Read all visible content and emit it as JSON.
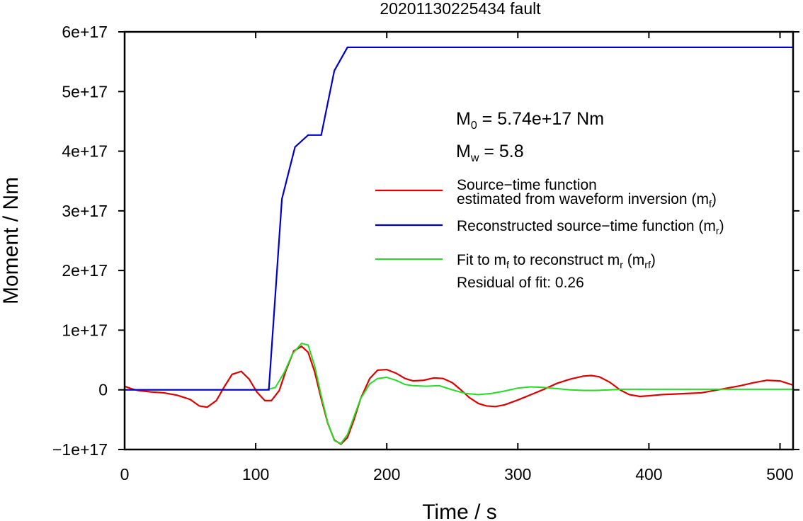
{
  "chart_data": {
    "type": "line",
    "title": "20201130225434 fault",
    "xlabel": "Time / s",
    "ylabel": "Moment / Nm",
    "xlim": [
      0,
      510
    ],
    "ylim": [
      -100000000000000000,
      600000000000000000
    ],
    "xticks": [
      0,
      100,
      200,
      300,
      400,
      500
    ],
    "xtick_labels": [
      "0",
      "100",
      "200",
      "300",
      "400",
      "500"
    ],
    "yticks": [
      -100000000000000000,
      0,
      100000000000000000,
      200000000000000000,
      300000000000000000,
      400000000000000000,
      500000000000000000,
      600000000000000000
    ],
    "ytick_labels": [
      "−1e+17",
      "0",
      "1e+17",
      "2e+17",
      "3e+17",
      "4e+17",
      "5e+17",
      "6e+17"
    ],
    "grid": false,
    "legend_position": "right, middle",
    "annotations": {
      "m0_main": "M",
      "m0_sub": "0",
      "m0_rest": " = 5.74e+17 Nm",
      "mw_main": "M",
      "mw_sub": "w",
      "mw_rest": " = 5.8",
      "residual": "Residual of fit: 0.26"
    },
    "series": [
      {
        "name": "Source−time function estimated from waveform inversion (m_f)",
        "legend_line1": "Source−time function",
        "legend_line2_main": "estimated from waveform inversion (m",
        "legend_line2_sub": "f",
        "legend_line2_end": ")",
        "color": "#e00000",
        "x": [
          0,
          5,
          10,
          20,
          30,
          40,
          50,
          57,
          63,
          70,
          76,
          82,
          89,
          95,
          101,
          107,
          112,
          118,
          123,
          129,
          135,
          140,
          145,
          150,
          155,
          160,
          165,
          170,
          175,
          180,
          187,
          193,
          200,
          207,
          214,
          220,
          228,
          236,
          243,
          250,
          256,
          263,
          270,
          276,
          283,
          290,
          300,
          310,
          320,
          330,
          340,
          350,
          356,
          362,
          370,
          378,
          385,
          393,
          400,
          410,
          420,
          430,
          440,
          450,
          460,
          470,
          480,
          490,
          500,
          510
        ],
        "y": [
          6000000000000000.0,
          2000000000000000.0,
          -1000000000000000.0,
          -3500000000000000.0,
          -5000000000000000.0,
          -9000000000000000.0,
          -1.6e+16,
          -2.7e+16,
          -2.9e+16,
          -1.8e+16,
          5000000000000000.0,
          2.6e+16,
          3.1e+16,
          1.8e+16,
          -4000000000000000.0,
          -1.8e+16,
          -1.8e+16,
          -1000000000000000.0,
          3.2e+16,
          6.5e+16,
          7.3e+16,
          6.3e+16,
          3e+16,
          -1.5e+16,
          -5.6e+16,
          -8.4e+16,
          -9.1e+16,
          -8e+16,
          -5e+16,
          -1.5e+16,
          1.9e+16,
          3.3e+16,
          3.4e+16,
          2.8e+16,
          1.9e+16,
          1.5e+16,
          1.6e+16,
          2e+16,
          1.9e+16,
          1.2e+16,
          1000000000000000.0,
          -1.3e+16,
          -2.3e+16,
          -2.7e+16,
          -2.8e+16,
          -2.5e+16,
          -1.7e+16,
          -8000000000000000.0,
          1000000000000000.0,
          1.1e+16,
          1.8e+16,
          2.3e+16,
          2.4e+16,
          2.2e+16,
          1.3e+16,
          0,
          -8000000000000000.0,
          -1.1e+16,
          -1e+16,
          -8000000000000000.0,
          -7000000000000000.0,
          -6000000000000000.0,
          -5000000000000000.0,
          -1000000000000000.0,
          3000000000000000.0,
          7000000000000000.0,
          1.2e+16,
          1.6e+16,
          1.5e+16,
          8000000000000000.0
        ]
      },
      {
        "name": "Reconstructed source−time function (m_r)",
        "legend_main": "Reconstructed source−time function (m",
        "legend_sub": "r",
        "legend_end": ")",
        "color": "#0000cc",
        "x": [
          0,
          110,
          120,
          130,
          140,
          150,
          160,
          170,
          510
        ],
        "y": [
          0,
          0,
          3.2e+17,
          4.07e+17,
          4.27e+17,
          4.27e+17,
          5.35e+17,
          5.74e+17,
          5.74e+17
        ]
      },
      {
        "name": "Fit to m_f to reconstruct m_r (m_rf)",
        "legend_p1": "Fit to m",
        "legend_s1": "f",
        "legend_p2": " to reconstruct m",
        "legend_s2": "r",
        "legend_p3": " (m",
        "legend_s3": "rf",
        "legend_p4": ")",
        "color": "#22dd22",
        "x": [
          0,
          100,
          108,
          115,
          122,
          128,
          135,
          140,
          145,
          150,
          155,
          160,
          165,
          170,
          175,
          180,
          187,
          193,
          200,
          207,
          214,
          220,
          230,
          240,
          250,
          260,
          270,
          280,
          290,
          300,
          310,
          320,
          330,
          340,
          350,
          360,
          370,
          380,
          390,
          400,
          420,
          440,
          460,
          480,
          500,
          510
        ],
        "y": [
          0,
          0,
          0,
          4000000000000000.0,
          3e+16,
          6e+16,
          7.8e+16,
          7.5e+16,
          4e+16,
          -1e+16,
          -5.5e+16,
          -8.5e+16,
          -9e+16,
          -7.5e+16,
          -4.5e+16,
          -1.5e+16,
          1e+16,
          1.9e+16,
          2.1e+16,
          1.6e+16,
          9000000000000000.0,
          7000000000000000.0,
          6000000000000000.0,
          7000000000000000.0,
          0,
          -6000000000000000.0,
          -8000000000000000.0,
          -6000000000000000.0,
          -2000000000000000.0,
          3000000000000000.0,
          5000000000000000.0,
          4000000000000000.0,
          2000000000000000.0,
          0,
          -1000000000000000.0,
          -1000000000000000.0,
          0,
          1000000000000000.0,
          1000000000000000.0,
          1000000000000000.0,
          1000000000000000.0,
          1000000000000000.0,
          1000000000000000.0,
          1000000000000000.0,
          1000000000000000.0,
          1000000000000000.0
        ]
      }
    ]
  }
}
